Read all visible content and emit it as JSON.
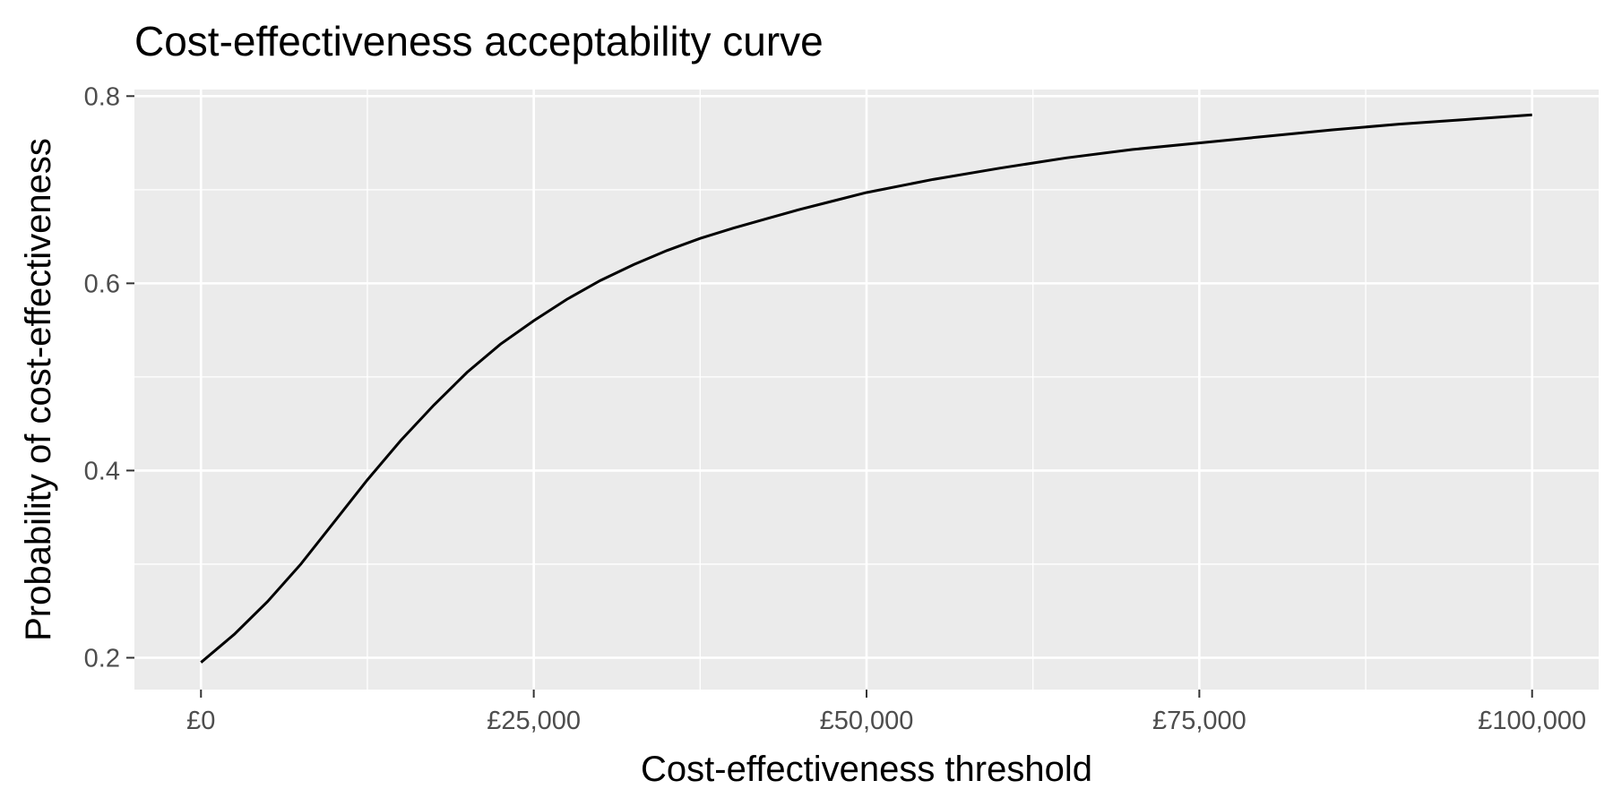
{
  "chart_data": {
    "type": "line",
    "title": "Cost-effectiveness acceptability curve",
    "xlabel": "Cost-effectiveness threshold",
    "ylabel": "Probability of cost-effectiveness",
    "xlim": [
      -5000,
      105000
    ],
    "ylim": [
      0.166,
      0.807
    ],
    "x_ticks": [
      0,
      25000,
      50000,
      75000,
      100000
    ],
    "x_tick_labels": [
      "£0",
      "£25,000",
      "£50,000",
      "£75,000",
      "£100,000"
    ],
    "y_ticks": [
      0.2,
      0.4,
      0.6,
      0.8
    ],
    "y_tick_labels": [
      "0.2",
      "0.4",
      "0.6",
      "0.8"
    ],
    "grid": true,
    "background_color": "#EBEBEB",
    "grid_color": "#FFFFFF",
    "line_color": "#000000",
    "series": [
      {
        "x": [
          0,
          2500,
          5000,
          7500,
          10000,
          12500,
          15000,
          17500,
          20000,
          22500,
          25000,
          27500,
          30000,
          32500,
          35000,
          37500,
          40000,
          42500,
          45000,
          47500,
          50000,
          55000,
          60000,
          65000,
          70000,
          75000,
          80000,
          85000,
          90000,
          95000,
          100000
        ],
        "y": [
          0.195,
          0.225,
          0.26,
          0.3,
          0.345,
          0.39,
          0.432,
          0.47,
          0.505,
          0.535,
          0.56,
          0.583,
          0.603,
          0.62,
          0.635,
          0.648,
          0.659,
          0.669,
          0.679,
          0.688,
          0.697,
          0.711,
          0.723,
          0.734,
          0.743,
          0.75,
          0.757,
          0.764,
          0.77,
          0.775,
          0.78
        ]
      }
    ]
  }
}
